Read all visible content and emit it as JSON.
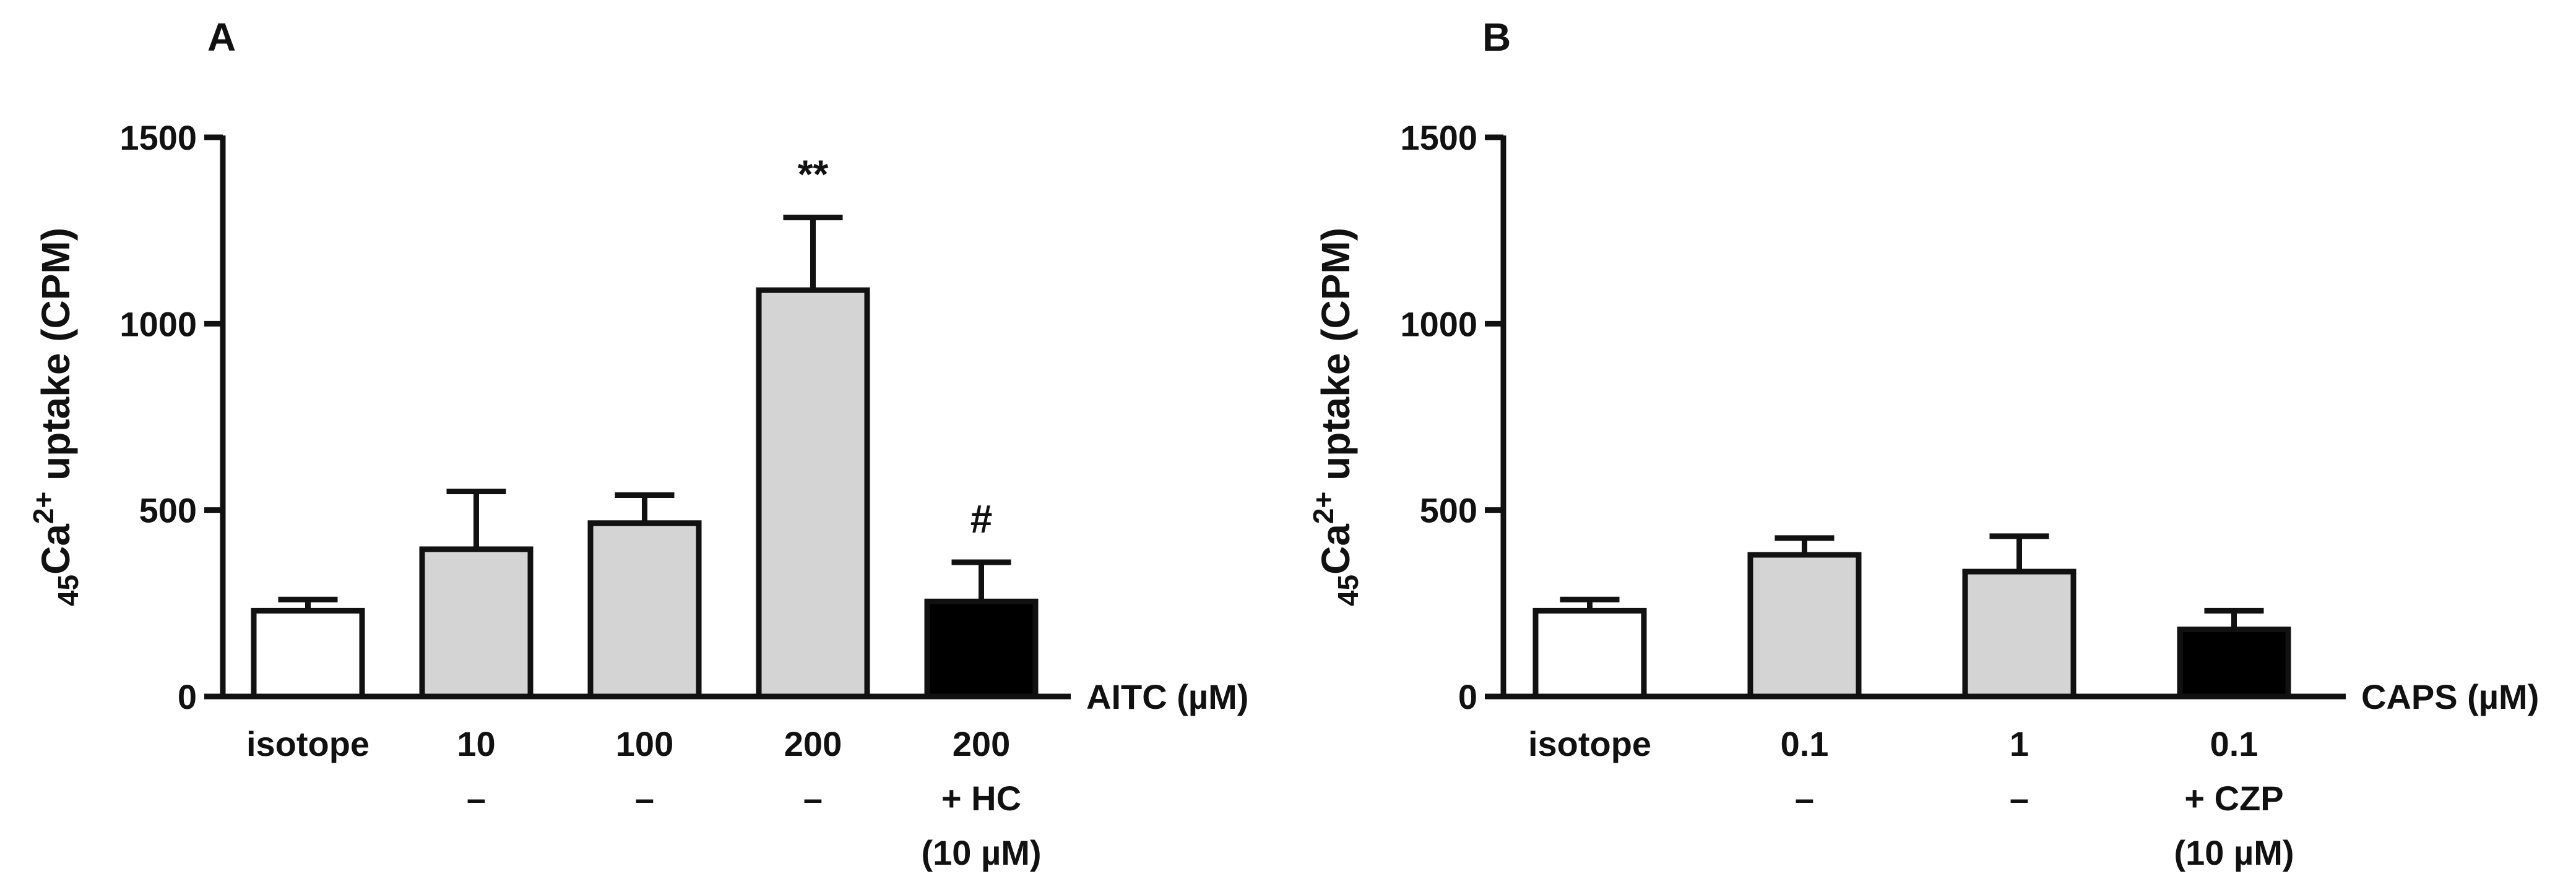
{
  "chart_data": [
    {
      "type": "bar",
      "panel": "A",
      "ylabel": {
        "sub": "45",
        "main": "Ca",
        "sup": "2+",
        "rest": " uptake (CPM)"
      },
      "ylim": [
        0,
        1500
      ],
      "yticks": [
        0,
        500,
        1000,
        1500
      ],
      "xlabel": "AITC (µM)",
      "categories": [
        {
          "lines": [
            "isotope",
            ""
          ]
        },
        {
          "lines": [
            "10",
            "–"
          ]
        },
        {
          "lines": [
            "100",
            "–"
          ]
        },
        {
          "lines": [
            "200",
            "–"
          ]
        },
        {
          "lines": [
            "200",
            "+ HC",
            "(10 µM)"
          ]
        }
      ],
      "values": [
        230,
        395,
        465,
        1090,
        255
      ],
      "errors": [
        30,
        155,
        75,
        195,
        105
      ],
      "fills": [
        "#ffffff",
        "#d4d4d4",
        "#d4d4d4",
        "#d4d4d4",
        "#000000"
      ],
      "annotations": [
        "",
        "",
        "",
        "**",
        "#"
      ]
    },
    {
      "type": "bar",
      "panel": "B",
      "ylabel": {
        "sub": "45",
        "main": "Ca",
        "sup": "2+",
        "rest": " uptake (CPM)"
      },
      "ylim": [
        0,
        1500
      ],
      "yticks": [
        0,
        500,
        1000,
        1500
      ],
      "xlabel": "CAPS (µM)",
      "categories": [
        {
          "lines": [
            "isotope",
            ""
          ]
        },
        {
          "lines": [
            "0.1",
            "–"
          ]
        },
        {
          "lines": [
            "1",
            "–"
          ]
        },
        {
          "lines": [
            "0.1",
            "+ CZP",
            "(10 µM)"
          ]
        }
      ],
      "values": [
        230,
        380,
        335,
        180
      ],
      "errors": [
        30,
        45,
        95,
        50
      ],
      "fills": [
        "#ffffff",
        "#d4d4d4",
        "#d4d4d4",
        "#000000"
      ],
      "annotations": [
        "",
        "",
        "",
        ""
      ]
    }
  ]
}
